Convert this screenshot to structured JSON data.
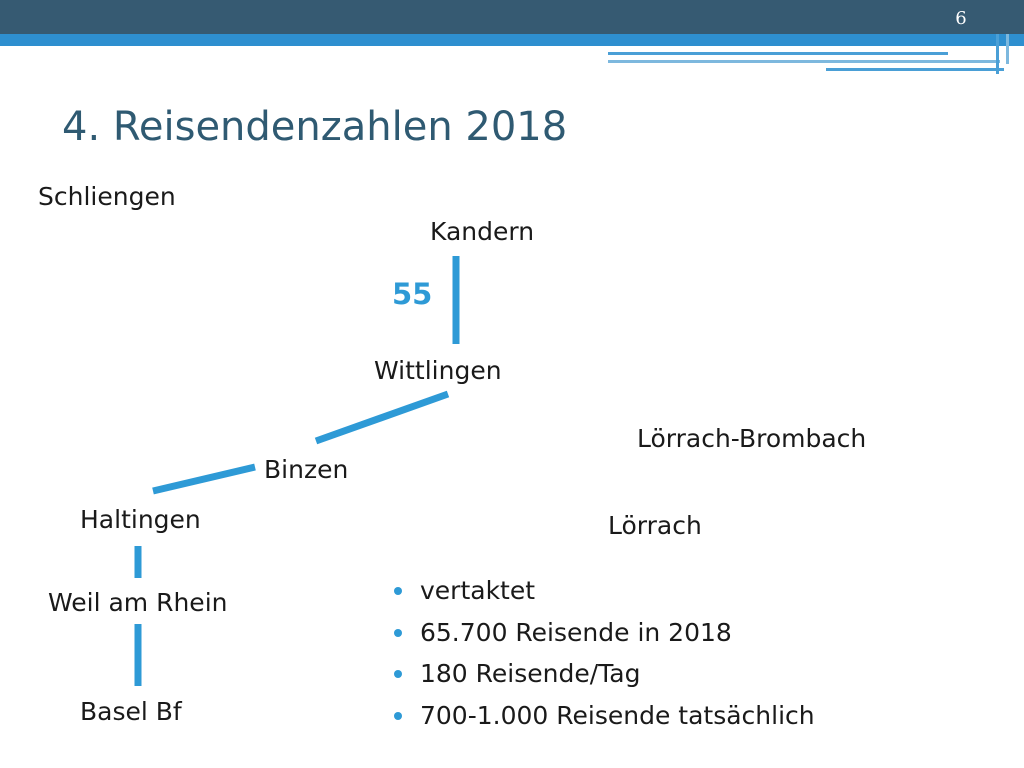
{
  "slide": {
    "number": "6",
    "title": "4. Reisendenzahlen 2018"
  },
  "stations": {
    "schliengen": "Schliengen",
    "kandern": "Kandern",
    "wittlingen": "Wittlingen",
    "loerrach_brombach": "Lörrach-Brombach",
    "binzen": "Binzen",
    "haltingen": "Haltingen",
    "loerrach": "Lörrach",
    "weil_am_rhein": "Weil am Rhein",
    "basel_bf": "Basel Bf"
  },
  "segment_label": "55",
  "bullets": [
    "vertaktet",
    "65.700 Reisende in 2018",
    "180 Reisende/Tag",
    "700-1.000 Reisende tatsächlich"
  ],
  "colors": {
    "line": "#2e9ad6",
    "title": "#2f5a72",
    "header_bar": "#365a72"
  }
}
